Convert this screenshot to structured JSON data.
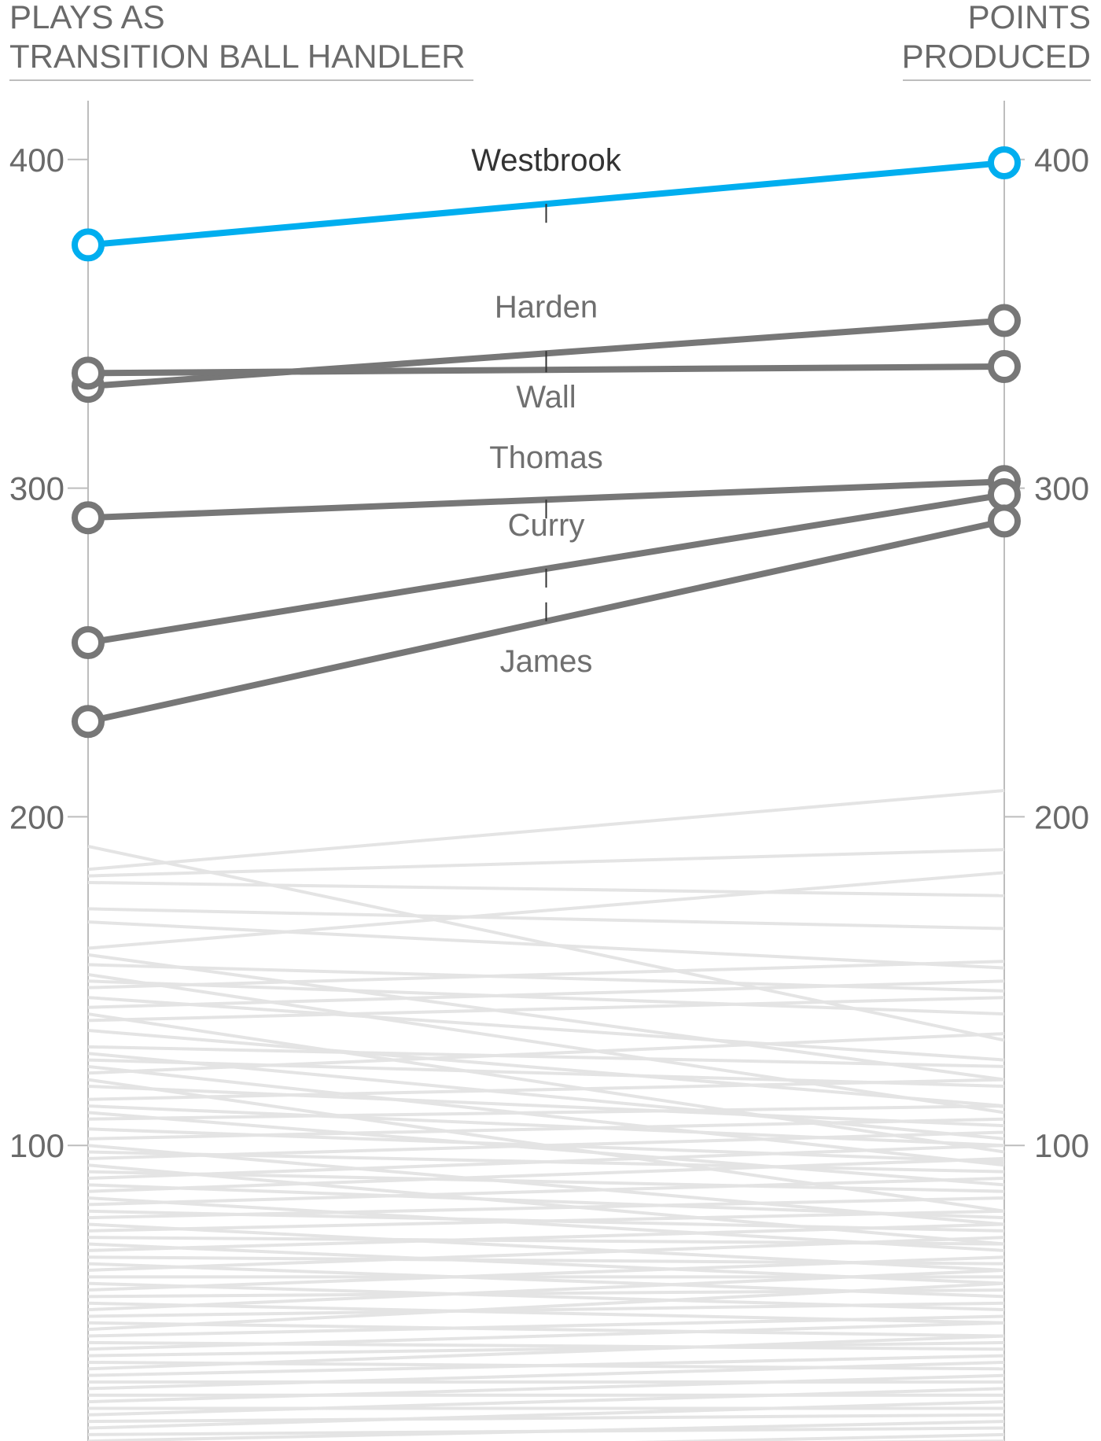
{
  "header": {
    "left_line1": "PLAYS AS",
    "left_line2": "TRANSITION BALL HANDLER",
    "right_line1": "POINTS",
    "right_line2": "PRODUCED"
  },
  "colors": {
    "highlight": "#00aeef",
    "featured": "#777777",
    "background_lines": "#e4e4e4",
    "axis": "#bdbdbd",
    "text": "#6a6a6a"
  },
  "chart_data": {
    "type": "slope",
    "left_axis": {
      "label": "PLAYS AS TRANSITION BALL HANDLER",
      "ticks": [
        100,
        200,
        300,
        400
      ],
      "ylim": [
        0,
        415
      ]
    },
    "right_axis": {
      "label": "POINTS PRODUCED",
      "ticks": [
        100,
        200,
        300,
        400
      ],
      "ylim": [
        0,
        415
      ]
    },
    "series": [
      {
        "name": "Westbrook",
        "left": 374,
        "right": 399,
        "highlight": true
      },
      {
        "name": "Harden",
        "left": 331,
        "right": 351,
        "highlight": false
      },
      {
        "name": "Wall",
        "left": 335,
        "right": 337,
        "highlight": false
      },
      {
        "name": "Thomas",
        "left": 291,
        "right": 302,
        "highlight": false
      },
      {
        "name": "Curry",
        "left": 253,
        "right": 298,
        "highlight": false
      },
      {
        "name": "James",
        "left": 229,
        "right": 290,
        "highlight": false
      }
    ],
    "other_players": [
      [
        191,
        132
      ],
      [
        184,
        208
      ],
      [
        182,
        190
      ],
      [
        180,
        176
      ],
      [
        172,
        166
      ],
      [
        168,
        154
      ],
      [
        160,
        183
      ],
      [
        158,
        120
      ],
      [
        155,
        147
      ],
      [
        152,
        110
      ],
      [
        150,
        140
      ],
      [
        148,
        156
      ],
      [
        145,
        126
      ],
      [
        142,
        150
      ],
      [
        140,
        98
      ],
      [
        138,
        145
      ],
      [
        135,
        112
      ],
      [
        130,
        124
      ],
      [
        128,
        102
      ],
      [
        126,
        118
      ],
      [
        124,
        94
      ],
      [
        122,
        134
      ],
      [
        120,
        80
      ],
      [
        118,
        106
      ],
      [
        114,
        120
      ],
      [
        112,
        100
      ],
      [
        110,
        88
      ],
      [
        108,
        112
      ],
      [
        105,
        95
      ],
      [
        102,
        108
      ],
      [
        100,
        76
      ],
      [
        98,
        92
      ],
      [
        96,
        104
      ],
      [
        94,
        70
      ],
      [
        92,
        86
      ],
      [
        90,
        100
      ],
      [
        88,
        78
      ],
      [
        86,
        96
      ],
      [
        84,
        68
      ],
      [
        82,
        90
      ],
      [
        80,
        74
      ],
      [
        78,
        84
      ],
      [
        76,
        62
      ],
      [
        74,
        80
      ],
      [
        72,
        70
      ],
      [
        70,
        58
      ],
      [
        68,
        76
      ],
      [
        66,
        64
      ],
      [
        64,
        54
      ],
      [
        62,
        72
      ],
      [
        60,
        60
      ],
      [
        58,
        50
      ],
      [
        56,
        66
      ],
      [
        54,
        56
      ],
      [
        52,
        46
      ],
      [
        50,
        62
      ],
      [
        48,
        52
      ],
      [
        46,
        42
      ],
      [
        44,
        58
      ],
      [
        42,
        48
      ],
      [
        40,
        38
      ],
      [
        38,
        46
      ],
      [
        36,
        40
      ],
      [
        34,
        32
      ],
      [
        32,
        42
      ],
      [
        30,
        36
      ],
      [
        28,
        28
      ],
      [
        26,
        34
      ],
      [
        24,
        24
      ],
      [
        22,
        30
      ],
      [
        20,
        20
      ],
      [
        18,
        26
      ],
      [
        16,
        18
      ],
      [
        14,
        22
      ],
      [
        12,
        14
      ],
      [
        10,
        16
      ],
      [
        8,
        10
      ],
      [
        6,
        12
      ],
      [
        4,
        6
      ],
      [
        3,
        4
      ]
    ]
  }
}
